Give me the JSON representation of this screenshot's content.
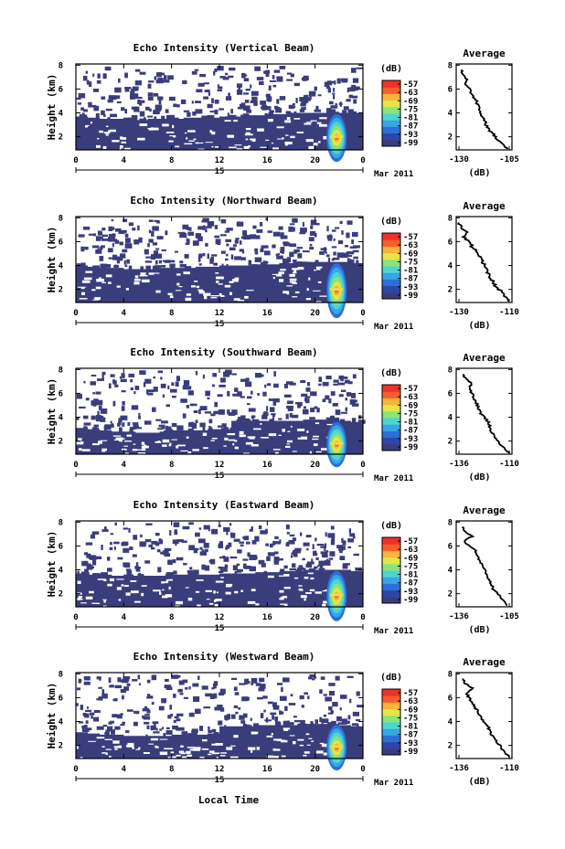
{
  "shared": {
    "height_label": "Height (km)",
    "height_ticks": [
      "2",
      "4",
      "6",
      "8"
    ],
    "time_ticks": [
      "0",
      "4",
      "8",
      "12",
      "16",
      "20",
      "0"
    ],
    "day_label": "15",
    "month_label": "Mar 2011",
    "xlabel": "Local Time",
    "unit_label": "(dB)",
    "avg_title": "Average",
    "avg_unit": "(dB)"
  },
  "colorscale": {
    "colors": [
      "#3a3d7c",
      "#2e46a8",
      "#2c6fd8",
      "#35a7e8",
      "#4fd5d0",
      "#8be37a",
      "#e5e646",
      "#f7b439",
      "#f55f2c",
      "#f0302a"
    ]
  },
  "chart_data": [
    {
      "type": "heatmap",
      "title": "Echo Intensity (Vertical Beam)",
      "xlim": [
        0,
        24
      ],
      "ylim": [
        0.9,
        8.1
      ],
      "colorbar_ticks": [
        "-57",
        "-63",
        "-69",
        "-75",
        "-81",
        "-87",
        "-93",
        "-99"
      ],
      "top_profile": [
        3.7,
        3.6,
        3.5,
        3.5,
        3.4,
        3.4,
        3.5,
        3.5,
        3.5,
        3.6,
        3.6,
        3.6,
        3.7,
        3.7,
        3.8,
        3.8,
        3.9,
        3.9,
        4.0,
        4.0,
        4.0,
        4.1,
        4.0,
        4.0
      ],
      "plume": {
        "x": 21.8,
        "y": 2.0,
        "top": 4.0
      },
      "average": {
        "xlim": [
          -130,
          -105
        ],
        "xticks": [
          "-130",
          "-105"
        ],
        "height": [
          1.0,
          1.6,
          2.0,
          2.4,
          2.8,
          3.2,
          3.6,
          4.0,
          4.4,
          4.8,
          5.2,
          5.6,
          6.0,
          6.4,
          6.8,
          7.2,
          7.6
        ],
        "values": [
          -106,
          -110,
          -112,
          -114,
          -116,
          -117,
          -118,
          -119,
          -120,
          -121,
          -122,
          -124,
          -125,
          -127,
          -126,
          -128,
          -129
        ]
      }
    },
    {
      "type": "heatmap",
      "title": "Echo Intensity (Northward Beam)",
      "xlim": [
        0,
        24
      ],
      "ylim": [
        0.9,
        8.1
      ],
      "colorbar_ticks": [
        "-57",
        "-63",
        "-69",
        "-75",
        "-81",
        "-87",
        "-93",
        "-99"
      ],
      "top_profile": [
        4.0,
        3.9,
        3.8,
        3.8,
        3.7,
        3.7,
        3.7,
        3.8,
        3.8,
        3.8,
        3.9,
        3.9,
        4.0,
        4.0,
        4.0,
        4.1,
        4.1,
        4.2,
        4.2,
        4.3,
        4.3,
        4.3,
        4.3,
        4.2
      ],
      "plume": {
        "x": 21.8,
        "y": 2.0,
        "top": 4.3
      },
      "average": {
        "xlim": [
          -130,
          -110
        ],
        "xticks": [
          "-130",
          "-110"
        ],
        "height": [
          1.0,
          1.6,
          2.0,
          2.4,
          2.8,
          3.2,
          3.6,
          4.0,
          4.4,
          4.8,
          5.2,
          5.6,
          6.0,
          6.4,
          6.8,
          7.2,
          7.6
        ],
        "values": [
          -110,
          -112,
          -114,
          -116,
          -117,
          -118,
          -119,
          -120,
          -121,
          -122,
          -123,
          -125,
          -126,
          -128,
          -127,
          -129,
          -130
        ]
      }
    },
    {
      "type": "heatmap",
      "title": "Echo Intensity (Southward Beam)",
      "xlim": [
        0,
        24
      ],
      "ylim": [
        0.9,
        8.1
      ],
      "colorbar_ticks": [
        "-57",
        "-63",
        "-69",
        "-75",
        "-81",
        "-87",
        "-93",
        "-99"
      ],
      "top_profile": [
        3.1,
        3.0,
        2.9,
        2.8,
        2.8,
        2.7,
        2.7,
        2.8,
        2.9,
        2.9,
        2.9,
        3.0,
        3.0,
        3.7,
        3.7,
        3.7,
        3.7,
        3.7,
        3.7,
        3.8,
        3.8,
        3.8,
        3.7,
        3.6
      ],
      "plume": {
        "x": 21.8,
        "y": 1.8,
        "top": 3.7
      },
      "average": {
        "xlim": [
          -136,
          -110
        ],
        "xticks": [
          "-136",
          "-110"
        ],
        "height": [
          1.0,
          1.6,
          2.0,
          2.4,
          2.8,
          3.2,
          3.6,
          4.0,
          4.4,
          4.8,
          5.2,
          5.6,
          6.0,
          6.4,
          6.8,
          7.2,
          7.6
        ],
        "values": [
          -110,
          -114,
          -116,
          -118,
          -119,
          -120,
          -121,
          -123,
          -125,
          -126,
          -127,
          -128,
          -129,
          -131,
          -129,
          -132,
          -134
        ]
      }
    },
    {
      "type": "heatmap",
      "title": "Echo Intensity (Eastward Beam)",
      "xlim": [
        0,
        24
      ],
      "ylim": [
        0.9,
        8.1
      ],
      "colorbar_ticks": [
        "-57",
        "-63",
        "-69",
        "-75",
        "-81",
        "-87",
        "-93",
        "-99"
      ],
      "top_profile": [
        3.7,
        3.6,
        3.6,
        3.5,
        3.5,
        3.5,
        3.5,
        3.5,
        3.6,
        3.6,
        3.6,
        3.6,
        3.7,
        3.7,
        3.7,
        3.8,
        3.8,
        3.9,
        3.9,
        4.0,
        4.0,
        4.0,
        4.0,
        3.9
      ],
      "plume": {
        "x": 21.8,
        "y": 1.9,
        "top": 4.0
      },
      "average": {
        "xlim": [
          -136,
          -105
        ],
        "xticks": [
          "-136",
          "-105"
        ],
        "height": [
          1.0,
          1.6,
          2.0,
          2.4,
          2.8,
          3.2,
          3.6,
          4.0,
          4.4,
          4.8,
          5.2,
          5.6,
          6.0,
          6.4,
          6.8,
          7.2,
          7.6
        ],
        "values": [
          -106,
          -110,
          -112,
          -115,
          -116,
          -118,
          -119,
          -120,
          -122,
          -123,
          -125,
          -126,
          -130,
          -133,
          -128,
          -132,
          -134
        ]
      }
    },
    {
      "type": "heatmap",
      "title": "Echo Intensity (Westward Beam)",
      "xlim": [
        0,
        24
      ],
      "ylim": [
        0.9,
        8.1
      ],
      "colorbar_ticks": [
        "-57",
        "-63",
        "-69",
        "-75",
        "-81",
        "-87",
        "-93",
        "-99"
      ],
      "top_profile": [
        3.1,
        3.0,
        2.9,
        2.9,
        2.8,
        2.8,
        2.8,
        2.8,
        2.9,
        2.9,
        2.9,
        3.0,
        3.6,
        3.6,
        3.6,
        3.7,
        3.7,
        3.7,
        3.7,
        3.8,
        3.8,
        3.8,
        3.7,
        3.6
      ],
      "plume": {
        "x": 21.8,
        "y": 1.9,
        "top": 3.8
      },
      "average": {
        "xlim": [
          -136,
          -110
        ],
        "xticks": [
          "-136",
          "-110"
        ],
        "height": [
          1.0,
          1.6,
          2.0,
          2.4,
          2.8,
          3.2,
          3.6,
          4.0,
          4.4,
          4.8,
          5.2,
          5.6,
          6.0,
          6.4,
          6.8,
          7.2,
          7.6
        ],
        "values": [
          -110,
          -113,
          -115,
          -117,
          -119,
          -120,
          -121,
          -123,
          -125,
          -126,
          -128,
          -129,
          -131,
          -132,
          -129,
          -133,
          -134
        ]
      }
    }
  ]
}
